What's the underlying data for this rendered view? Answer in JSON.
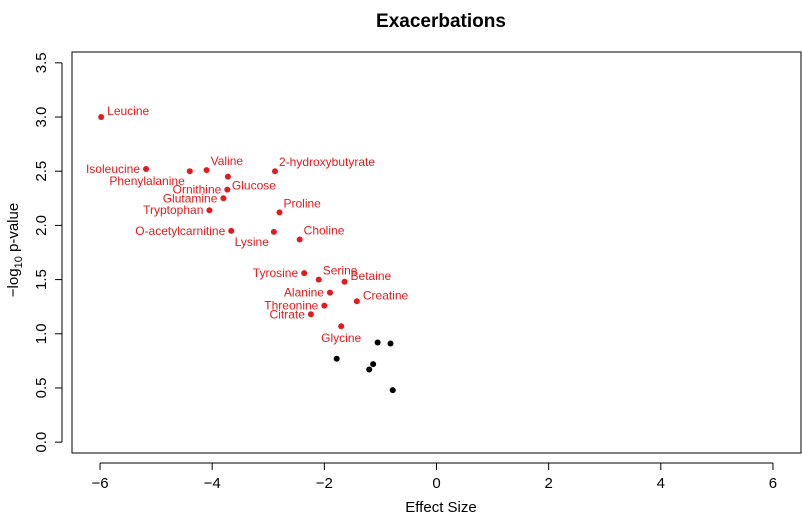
{
  "chart_data": {
    "type": "scatter",
    "title": "Exacerbations",
    "xlabel": "Effect Size",
    "ylabel": "−log",
    "ylabel_sub": "10",
    "ylabel_rest": " p-value",
    "xlim": [
      -6.5,
      6.5
    ],
    "ylim": [
      -0.1,
      3.6
    ],
    "xticks": [
      -6,
      -4,
      -2,
      0,
      2,
      4,
      6
    ],
    "xtick_labels": [
      "−6",
      "−4",
      "−2",
      "0",
      "2",
      "4",
      "6"
    ],
    "yticks": [
      0.0,
      0.5,
      1.0,
      1.5,
      2.0,
      2.5,
      3.0,
      3.5
    ],
    "ytick_labels": [
      "0.0",
      "0.5",
      "1.0",
      "1.5",
      "2.0",
      "2.5",
      "3.0",
      "3.5"
    ],
    "grid": false,
    "colors": {
      "significant": "#e41a1c",
      "nonsignificant": "#000000"
    },
    "points": [
      {
        "label": "Leucine",
        "x": -5.98,
        "y": 3.0,
        "sig": true,
        "pos": "right"
      },
      {
        "label": "Isoleucine",
        "x": -5.18,
        "y": 2.52,
        "sig": true,
        "pos": "left"
      },
      {
        "label": "Phenylalanine",
        "x": -4.4,
        "y": 2.5,
        "sig": true,
        "pos": "below-left"
      },
      {
        "label": "Valine",
        "x": -4.1,
        "y": 2.51,
        "sig": true,
        "pos": "above-right"
      },
      {
        "label": "Glucose",
        "x": -3.72,
        "y": 2.45,
        "sig": true,
        "pos": "below-right"
      },
      {
        "label": "Ornithine",
        "x": -3.73,
        "y": 2.33,
        "sig": true,
        "pos": "left"
      },
      {
        "label": "Glutamine",
        "x": -3.8,
        "y": 2.25,
        "sig": true,
        "pos": "left"
      },
      {
        "label": "2-hydroxybutyrate",
        "x": -2.88,
        "y": 2.5,
        "sig": true,
        "pos": "above-right"
      },
      {
        "label": "Tryptophan",
        "x": -4.05,
        "y": 2.14,
        "sig": true,
        "pos": "left"
      },
      {
        "label": "Proline",
        "x": -2.8,
        "y": 2.12,
        "sig": true,
        "pos": "above-right"
      },
      {
        "label": "O-acetylcarnitine",
        "x": -3.66,
        "y": 1.95,
        "sig": true,
        "pos": "left"
      },
      {
        "label": "Lysine",
        "x": -2.9,
        "y": 1.94,
        "sig": true,
        "pos": "below-left"
      },
      {
        "label": "Choline",
        "x": -2.44,
        "y": 1.87,
        "sig": true,
        "pos": "above-right"
      },
      {
        "label": "Tyrosine",
        "x": -2.36,
        "y": 1.56,
        "sig": true,
        "pos": "left"
      },
      {
        "label": "Serine",
        "x": -2.1,
        "y": 1.5,
        "sig": true,
        "pos": "above-right"
      },
      {
        "label": "Betaine",
        "x": -1.64,
        "y": 1.48,
        "sig": true,
        "pos": "right"
      },
      {
        "label": "Alanine",
        "x": -1.9,
        "y": 1.38,
        "sig": true,
        "pos": "left"
      },
      {
        "label": "Threonine",
        "x": -2.0,
        "y": 1.26,
        "sig": true,
        "pos": "left"
      },
      {
        "label": "Creatine",
        "x": -1.42,
        "y": 1.3,
        "sig": true,
        "pos": "right"
      },
      {
        "label": "Citrate",
        "x": -2.24,
        "y": 1.18,
        "sig": true,
        "pos": "left"
      },
      {
        "label": "Glycine",
        "x": -1.7,
        "y": 1.07,
        "sig": true,
        "pos": "below"
      },
      {
        "label": "",
        "x": -1.05,
        "y": 0.92,
        "sig": false
      },
      {
        "label": "",
        "x": -0.82,
        "y": 0.91,
        "sig": false
      },
      {
        "label": "",
        "x": -1.78,
        "y": 0.77,
        "sig": false
      },
      {
        "label": "",
        "x": -1.13,
        "y": 0.72,
        "sig": false
      },
      {
        "label": "",
        "x": -1.2,
        "y": 0.67,
        "sig": false
      },
      {
        "label": "",
        "x": -0.78,
        "y": 0.48,
        "sig": false
      }
    ]
  }
}
